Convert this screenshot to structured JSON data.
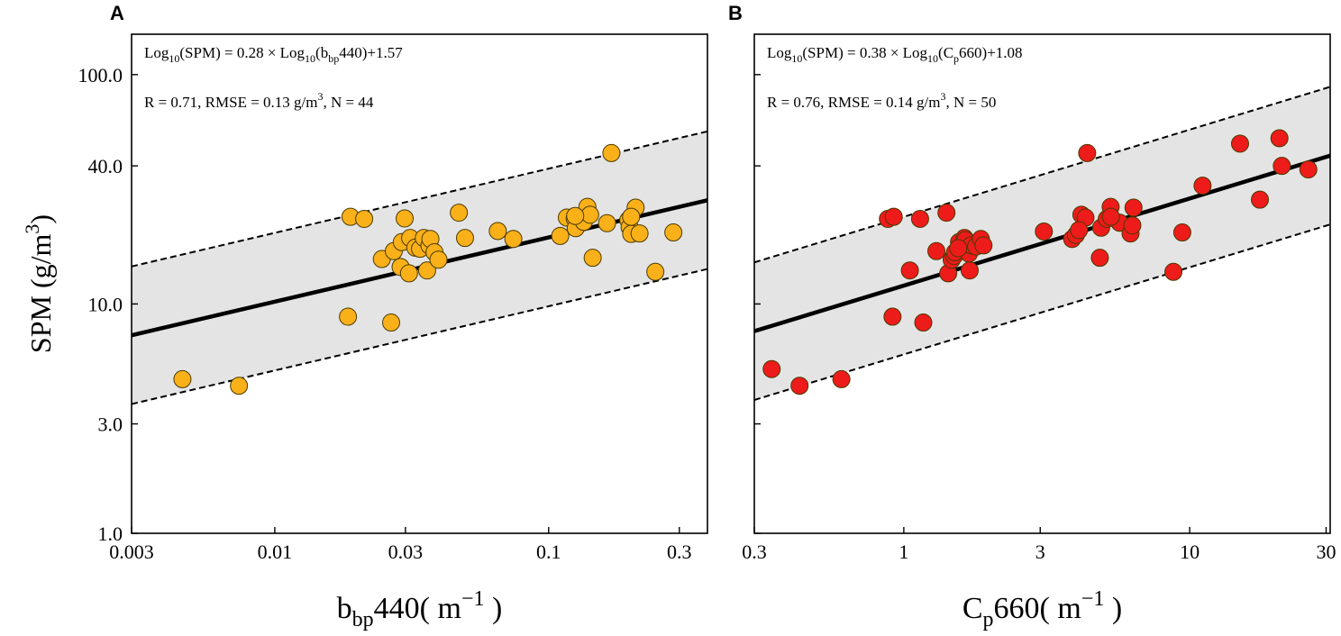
{
  "chart_data": [
    {
      "panel": "A",
      "type": "scatter",
      "xscale": "log",
      "yscale": "log",
      "xlim": [
        0.003,
        0.38
      ],
      "ylim": [
        1.0,
        150.0
      ],
      "xticks": [
        0.003,
        0.01,
        0.03,
        0.1,
        0.3
      ],
      "xtick_labels": [
        "0.003",
        "0.01",
        "0.03",
        "0.1",
        "0.3"
      ],
      "yticks": [
        1.0,
        3.0,
        10.0,
        40.0,
        100.0
      ],
      "ytick_labels": [
        "1.0",
        "3.0",
        "10.0",
        "40.0",
        "100.0"
      ],
      "xlabel": {
        "main": "b",
        "sub": "bp",
        "rest": "440( m",
        "sup": "−1",
        "close": " )"
      },
      "ylabel": {
        "main": "SPM (g/m",
        "sup": "3",
        "close": ")"
      },
      "equation": {
        "p1": "Log",
        "s1": "10",
        "p2": "(SPM) = 0.28 × Log",
        "s2": "10",
        "p3": "(b",
        "s3": "bp",
        "p4": "440)+1.57"
      },
      "stats": {
        "p1": "R = 0.71, RMSE = 0.13 g/m",
        "sup": "3",
        "p2": ", N = 44"
      },
      "fit": {
        "slope": 0.28,
        "intercept": 1.57,
        "band_offset": 0.3
      },
      "point_color": "#F9B019",
      "points": [
        [
          0.0046,
          4.7
        ],
        [
          0.0074,
          4.4
        ],
        [
          0.0185,
          8.8
        ],
        [
          0.0189,
          24.0
        ],
        [
          0.0212,
          23.5
        ],
        [
          0.0246,
          15.7
        ],
        [
          0.0266,
          8.3
        ],
        [
          0.0272,
          17.0
        ],
        [
          0.0288,
          14.5
        ],
        [
          0.0291,
          18.6
        ],
        [
          0.0298,
          23.6
        ],
        [
          0.0309,
          13.6
        ],
        [
          0.0312,
          19.4
        ],
        [
          0.0326,
          17.6
        ],
        [
          0.0339,
          17.4
        ],
        [
          0.035,
          19.4
        ],
        [
          0.036,
          14.0
        ],
        [
          0.0367,
          18.0
        ],
        [
          0.037,
          19.2
        ],
        [
          0.0383,
          16.8
        ],
        [
          0.0396,
          15.6
        ],
        [
          0.047,
          25.0
        ],
        [
          0.0495,
          19.4
        ],
        [
          0.0652,
          20.8
        ],
        [
          0.0743,
          19.2
        ],
        [
          0.1102,
          19.8
        ],
        [
          0.1165,
          23.8
        ],
        [
          0.1245,
          23.6
        ],
        [
          0.1255,
          21.4
        ],
        [
          0.1344,
          22.8
        ],
        [
          0.1385,
          26.5
        ],
        [
          0.1417,
          24.5
        ],
        [
          0.1448,
          15.9
        ],
        [
          0.1634,
          22.5
        ],
        [
          0.1694,
          45.5
        ],
        [
          0.1954,
          23.2
        ],
        [
          0.1975,
          21.6
        ],
        [
          0.2001,
          20.2
        ],
        [
          0.2077,
          26.3
        ],
        [
          0.2147,
          20.3
        ],
        [
          0.2452,
          13.8
        ],
        [
          0.2853,
          20.5
        ],
        [
          0.2,
          24.0
        ],
        [
          0.125,
          24.2
        ]
      ]
    },
    {
      "panel": "B",
      "type": "scatter",
      "xscale": "log",
      "yscale": "log",
      "xlim": [
        0.3,
        31.0
      ],
      "ylim": [
        1.0,
        150.0
      ],
      "xticks": [
        0.3,
        1,
        3,
        10,
        30
      ],
      "xtick_labels": [
        "0.3",
        "1",
        "3",
        "10",
        "30"
      ],
      "yticks": [
        1.0,
        3.0,
        10.0,
        40.0,
        100.0
      ],
      "ytick_labels": [
        "1.0",
        "3.0",
        "10.0",
        "40.0",
        "100.0"
      ],
      "xlabel": {
        "main": "C",
        "sub": "p",
        "rest": "660( m",
        "sup": "−1",
        "close": " )"
      },
      "equation": {
        "p1": "Log",
        "s1": "10",
        "p2": "(SPM) = 0.38 × Log",
        "s2": "10",
        "p3": "(C",
        "s3": "p",
        "p4": "660)+1.08"
      },
      "stats": {
        "p1": "R = 0.76, RMSE = 0.14 g/m",
        "sup": "3",
        "p2": ", N = 50"
      },
      "fit": {
        "slope": 0.38,
        "intercept": 1.08,
        "band_offset": 0.3
      },
      "point_color": "#EE1B1B",
      "points": [
        [
          0.345,
          5.2
        ],
        [
          0.432,
          4.4
        ],
        [
          0.605,
          4.7
        ],
        [
          0.88,
          23.5
        ],
        [
          0.913,
          8.8
        ],
        [
          0.922,
          24.0
        ],
        [
          1.05,
          14.0
        ],
        [
          1.14,
          23.5
        ],
        [
          1.17,
          8.3
        ],
        [
          1.3,
          17.0
        ],
        [
          1.41,
          25.0
        ],
        [
          1.43,
          13.6
        ],
        [
          1.47,
          15.6
        ],
        [
          1.5,
          16.2
        ],
        [
          1.51,
          16.8
        ],
        [
          1.56,
          18.6
        ],
        [
          1.6,
          17.8
        ],
        [
          1.63,
          19.4
        ],
        [
          1.64,
          19.0
        ],
        [
          1.69,
          16.6
        ],
        [
          1.7,
          14.0
        ],
        [
          1.72,
          18.0
        ],
        [
          1.79,
          17.8
        ],
        [
          1.86,
          19.2
        ],
        [
          3.09,
          20.7
        ],
        [
          3.88,
          19.2
        ],
        [
          4.0,
          20.0
        ],
        [
          4.18,
          24.5
        ],
        [
          4.32,
          23.8
        ],
        [
          4.38,
          45.5
        ],
        [
          4.85,
          15.9
        ],
        [
          4.9,
          21.5
        ],
        [
          5.13,
          23.5
        ],
        [
          5.29,
          26.5
        ],
        [
          5.69,
          22.6
        ],
        [
          6.21,
          20.3
        ],
        [
          6.3,
          22.0
        ],
        [
          6.36,
          26.3
        ],
        [
          8.77,
          13.8
        ],
        [
          9.42,
          20.5
        ],
        [
          11.09,
          32.8
        ],
        [
          15.0,
          50.0
        ],
        [
          17.6,
          28.5
        ],
        [
          20.6,
          52.8
        ],
        [
          21.0,
          40.0
        ],
        [
          26.0,
          38.6
        ],
        [
          5.3,
          24.0
        ],
        [
          1.9,
          18.0
        ],
        [
          1.55,
          17.5
        ],
        [
          4.1,
          21.0
        ]
      ]
    }
  ]
}
